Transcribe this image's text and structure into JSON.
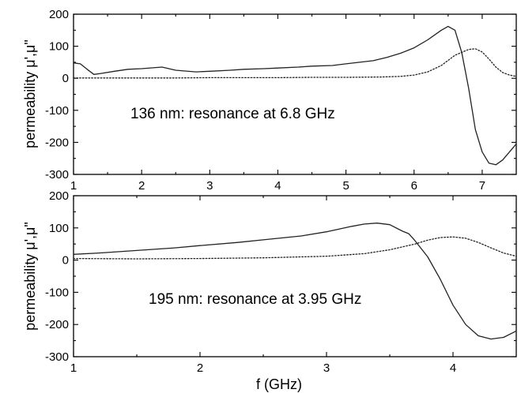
{
  "chart_data": [
    {
      "type": "line",
      "xlim": [
        1,
        7.5
      ],
      "ylim": [
        -300,
        200
      ],
      "xticks": [
        "1",
        "2",
        "3",
        "4",
        "5",
        "6",
        "7"
      ],
      "yticks": [
        "200",
        "100",
        "0",
        "-100",
        "-200",
        "-300"
      ],
      "xlabel": "",
      "ylabel": "permeability μ',μ\"",
      "annotation": "136 nm: resonance at 6.8 GHz",
      "grid": false,
      "series": [
        {
          "x": [
            1.0,
            1.1,
            1.2,
            1.3,
            1.4,
            1.6,
            1.8,
            2.0,
            2.3,
            2.5,
            2.8,
            3.0,
            3.3,
            3.5,
            3.8,
            4.0,
            4.3,
            4.5,
            4.8,
            5.0,
            5.2,
            5.4,
            5.6,
            5.8,
            6.0,
            6.2,
            6.4,
            6.5,
            6.6,
            6.7,
            6.8,
            6.9,
            7.0,
            7.1,
            7.2,
            7.3,
            7.4,
            7.5
          ],
          "y": [
            48,
            45,
            28,
            12,
            15,
            22,
            28,
            30,
            35,
            25,
            20,
            22,
            25,
            28,
            30,
            32,
            35,
            38,
            40,
            45,
            50,
            55,
            65,
            78,
            95,
            120,
            150,
            162,
            150,
            80,
            -30,
            -160,
            -230,
            -265,
            -270,
            -255,
            -230,
            -205
          ]
        },
        {
          "x": [
            1.0,
            1.5,
            2.0,
            2.5,
            3.0,
            3.5,
            4.0,
            4.5,
            5.0,
            5.5,
            5.8,
            6.0,
            6.2,
            6.4,
            6.6,
            6.8,
            6.9,
            7.0,
            7.1,
            7.2,
            7.3,
            7.4,
            7.5
          ],
          "y": [
            1,
            1,
            1,
            1,
            2,
            2,
            2,
            3,
            3,
            4,
            6,
            10,
            20,
            40,
            72,
            90,
            92,
            82,
            60,
            35,
            18,
            10,
            6
          ]
        }
      ]
    },
    {
      "type": "line",
      "xlim": [
        1,
        4.5
      ],
      "ylim": [
        -300,
        200
      ],
      "xticks": [
        "1",
        "2",
        "3",
        "4"
      ],
      "yticks": [
        "200",
        "100",
        "0",
        "-100",
        "-200",
        "-300"
      ],
      "xlabel": "f (GHz)",
      "ylabel": "permeability μ',μ\"",
      "annotation": "195 nm: resonance at 3.95 GHz",
      "grid": false,
      "series": [
        {
          "x": [
            1.0,
            1.2,
            1.5,
            1.8,
            2.0,
            2.3,
            2.5,
            2.8,
            3.0,
            3.2,
            3.3,
            3.4,
            3.5,
            3.6,
            3.65,
            3.7,
            3.8,
            3.9,
            4.0,
            4.1,
            4.2,
            4.3,
            4.4,
            4.5
          ],
          "y": [
            18,
            22,
            30,
            38,
            45,
            55,
            63,
            75,
            88,
            105,
            112,
            115,
            110,
            90,
            82,
            60,
            10,
            -60,
            -140,
            -200,
            -235,
            -245,
            -240,
            -220
          ]
        },
        {
          "x": [
            1.0,
            1.5,
            2.0,
            2.5,
            3.0,
            3.3,
            3.5,
            3.7,
            3.8,
            3.9,
            4.0,
            4.1,
            4.2,
            4.3,
            4.4,
            4.5
          ],
          "y": [
            5,
            4,
            5,
            7,
            12,
            20,
            32,
            50,
            62,
            70,
            72,
            68,
            55,
            38,
            22,
            12
          ]
        }
      ]
    }
  ]
}
